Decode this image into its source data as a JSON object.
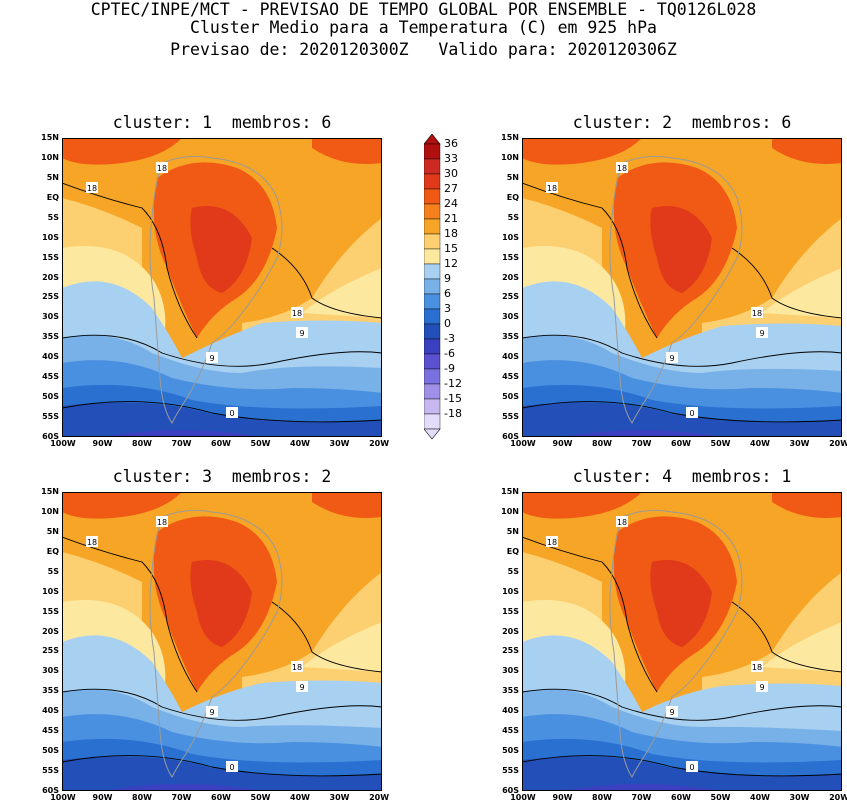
{
  "header": {
    "line1": "CPTEC/INPE/MCT - PREVISAO DE TEMPO GLOBAL POR ENSEMBLE - TQ0126L028",
    "line2": "Cluster Medio para a Temperatura (C) em 925 hPa",
    "line3": "Previsao de: 2020120300Z   Valido para: 2020120306Z"
  },
  "panels": [
    {
      "title": "cluster: 1  membros: 6"
    },
    {
      "title": "cluster: 2  membros: 6"
    },
    {
      "title": "cluster: 3  membros: 2"
    },
    {
      "title": "cluster: 4  membros: 1"
    }
  ],
  "lat_ticks": [
    "15N",
    "10N",
    "5N",
    "EQ",
    "5S",
    "10S",
    "15S",
    "20S",
    "25S",
    "30S",
    "35S",
    "40S",
    "45S",
    "50S",
    "55S",
    "60S"
  ],
  "lon_ticks": [
    "100W",
    "90W",
    "80W",
    "70W",
    "60W",
    "50W",
    "40W",
    "30W",
    "20W"
  ],
  "contour_labels": [
    "18",
    "18",
    "18",
    "9",
    "9",
    "0"
  ],
  "colorbar": {
    "levels": [
      "36",
      "33",
      "30",
      "27",
      "24",
      "21",
      "18",
      "15",
      "12",
      "9",
      "6",
      "3",
      "0",
      "-3",
      "-6",
      "-9",
      "-12",
      "-15",
      "-18"
    ],
    "colors": [
      "#b01010",
      "#cc2a22",
      "#e03a1a",
      "#f05a14",
      "#f5801c",
      "#f7a526",
      "#fcd070",
      "#fde8a0",
      "#a8d0f0",
      "#78b0e8",
      "#4a90e0",
      "#2a70d0",
      "#2250b8",
      "#3a40c0",
      "#5a50d0",
      "#7a70e0",
      "#a090e8",
      "#c8b8f0",
      "#e4dcf8"
    ]
  },
  "colors": {
    "map_bg": "#f7a526",
    "coast": "#9a9a9a",
    "contour": "#000000"
  }
}
